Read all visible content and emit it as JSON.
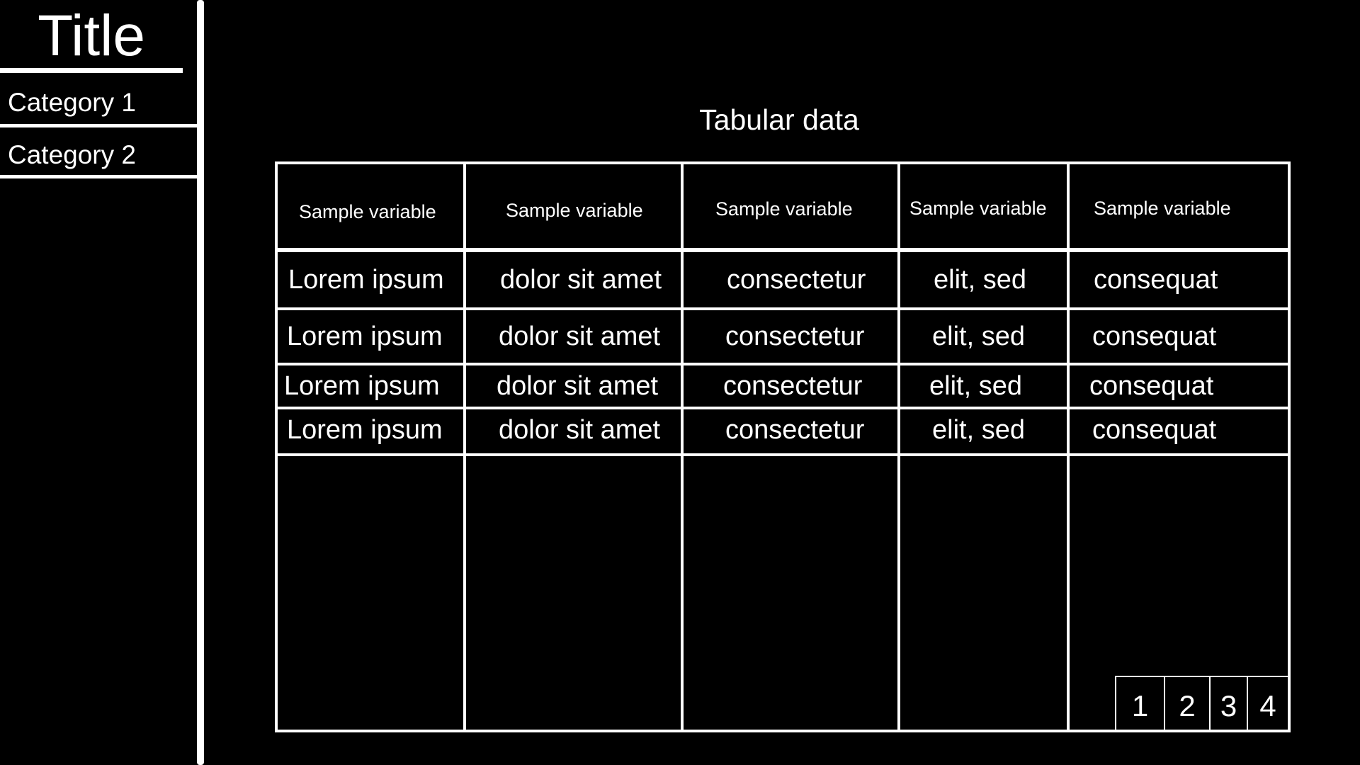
{
  "app": {
    "title": "Title"
  },
  "sidebar": {
    "items": [
      {
        "label": "Category 1"
      },
      {
        "label": "Category 2"
      }
    ]
  },
  "table": {
    "title": "Tabular data",
    "headers": [
      "Sample variable",
      "Sample variable",
      "Sample variable",
      "Sample variable",
      "Sample variable"
    ],
    "rows": [
      [
        "Lorem ipsum",
        "dolor sit amet",
        "consectetur",
        "elit, sed",
        "consequat"
      ],
      [
        "Lorem ipsum",
        "dolor sit amet",
        "consectetur",
        "elit, sed",
        "consequat"
      ],
      [
        "Lorem ipsum",
        "dolor sit amet",
        "consectetur",
        "elit, sed",
        "consequat"
      ],
      [
        "Lorem ipsum",
        "dolor sit amet",
        "consectetur",
        "elit, sed",
        "consequat"
      ]
    ]
  },
  "pagination": {
    "pages": [
      "1",
      "2",
      "3",
      "4"
    ]
  },
  "colors": {
    "background": "#000000",
    "foreground": "#ffffff"
  }
}
